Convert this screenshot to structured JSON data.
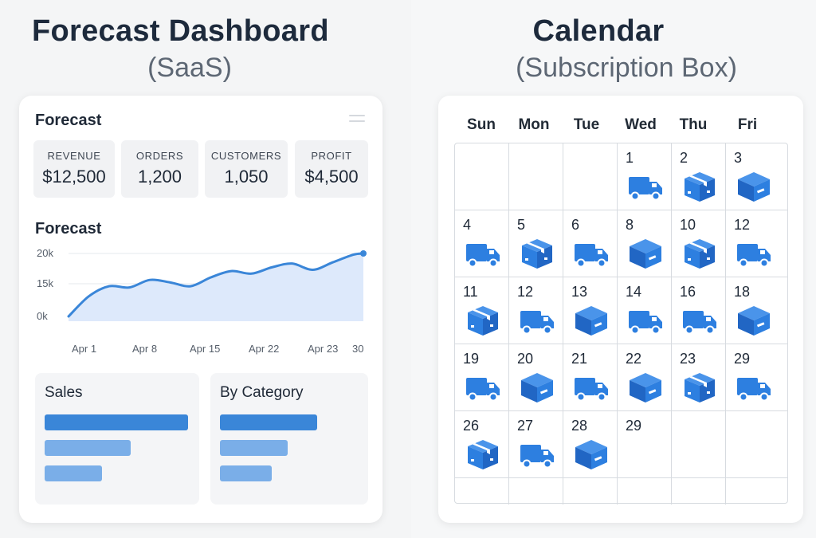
{
  "left": {
    "title": "Forecast Dashboard",
    "subtitle": "(SaaS)"
  },
  "right": {
    "title": "Calendar",
    "subtitle": "(Subscription Box)"
  },
  "dashboard": {
    "heading": "Forecast",
    "kpis": [
      {
        "label": "REVENUE",
        "value": "$12,500"
      },
      {
        "label": "ORDERS",
        "value": "1,200"
      },
      {
        "label": "CUSTOMERS",
        "value": "1,050"
      },
      {
        "label": "PROFIT",
        "value": "$4,500"
      }
    ],
    "chart_heading": "Forecast",
    "sales_title": "Sales",
    "category_title": "By Category",
    "sales_bars": [
      1.0,
      0.6,
      0.4
    ],
    "category_bars": [
      0.72,
      0.5,
      0.38
    ]
  },
  "chart_data": {
    "type": "area",
    "title": "Forecast",
    "xlabel": "",
    "ylabel": "",
    "x_ticks": [
      "Apr 1",
      "Apr 8",
      "Apr 15",
      "Apr 22",
      "Apr 23",
      "30"
    ],
    "y_ticks": [
      "0k",
      "15k",
      "20k"
    ],
    "series": [
      {
        "x": [
          1,
          3,
          5,
          7,
          9,
          11,
          13,
          15,
          17,
          19,
          21,
          23,
          25,
          27,
          29,
          30
        ],
        "y": [
          0,
          8,
          12,
          11.5,
          14.5,
          13.5,
          12,
          15.5,
          18,
          17,
          19.5,
          21,
          18.5,
          21.5,
          24.5,
          25
        ]
      }
    ],
    "color": "#3a86d8",
    "fill": "#dde9fb",
    "grid": true
  },
  "calendar": {
    "days": [
      "Sun",
      "Mon",
      "Tue",
      "Wed",
      "Thu",
      "Fri"
    ],
    "weeks": [
      [
        null,
        null,
        null,
        {
          "n": "1",
          "icon": "truck-icon"
        },
        {
          "n": "2",
          "icon": "open-box-icon"
        },
        {
          "n": "3",
          "icon": "box-icon"
        }
      ],
      [
        {
          "n": "4",
          "icon": "truck-icon"
        },
        {
          "n": "5",
          "icon": "open-box-icon"
        },
        {
          "n": "6",
          "icon": "truck-icon"
        },
        {
          "n": "8",
          "icon": "box-icon"
        },
        {
          "n": "10",
          "icon": "open-box-icon"
        },
        {
          "n": "12",
          "icon": "truck-icon"
        }
      ],
      [
        {
          "n": "11",
          "icon": "open-box-icon"
        },
        {
          "n": "12",
          "icon": "truck-icon"
        },
        {
          "n": "13",
          "icon": "box-icon"
        },
        {
          "n": "14",
          "icon": "truck-icon"
        },
        {
          "n": "16",
          "icon": "truck-icon"
        },
        {
          "n": "18",
          "icon": "box-icon"
        }
      ],
      [
        {
          "n": "19",
          "icon": "truck-icon"
        },
        {
          "n": "20",
          "icon": "box-icon"
        },
        {
          "n": "21",
          "icon": "truck-icon"
        },
        {
          "n": "22",
          "icon": "box-icon"
        },
        {
          "n": "23",
          "icon": "open-box-icon"
        },
        {
          "n": "29",
          "icon": "truck-icon"
        }
      ],
      [
        {
          "n": "26",
          "icon": "open-box-icon"
        },
        {
          "n": "27",
          "icon": "truck-icon"
        },
        {
          "n": "28",
          "icon": "box-icon"
        },
        {
          "n": "29",
          "icon": null
        },
        null,
        null
      ],
      [
        null,
        null,
        null,
        null,
        null,
        null
      ]
    ]
  },
  "colors": {
    "accent": "#3a86d8",
    "bar_primary": "#3a86d8",
    "bar_secondary": "#7aaee8"
  }
}
